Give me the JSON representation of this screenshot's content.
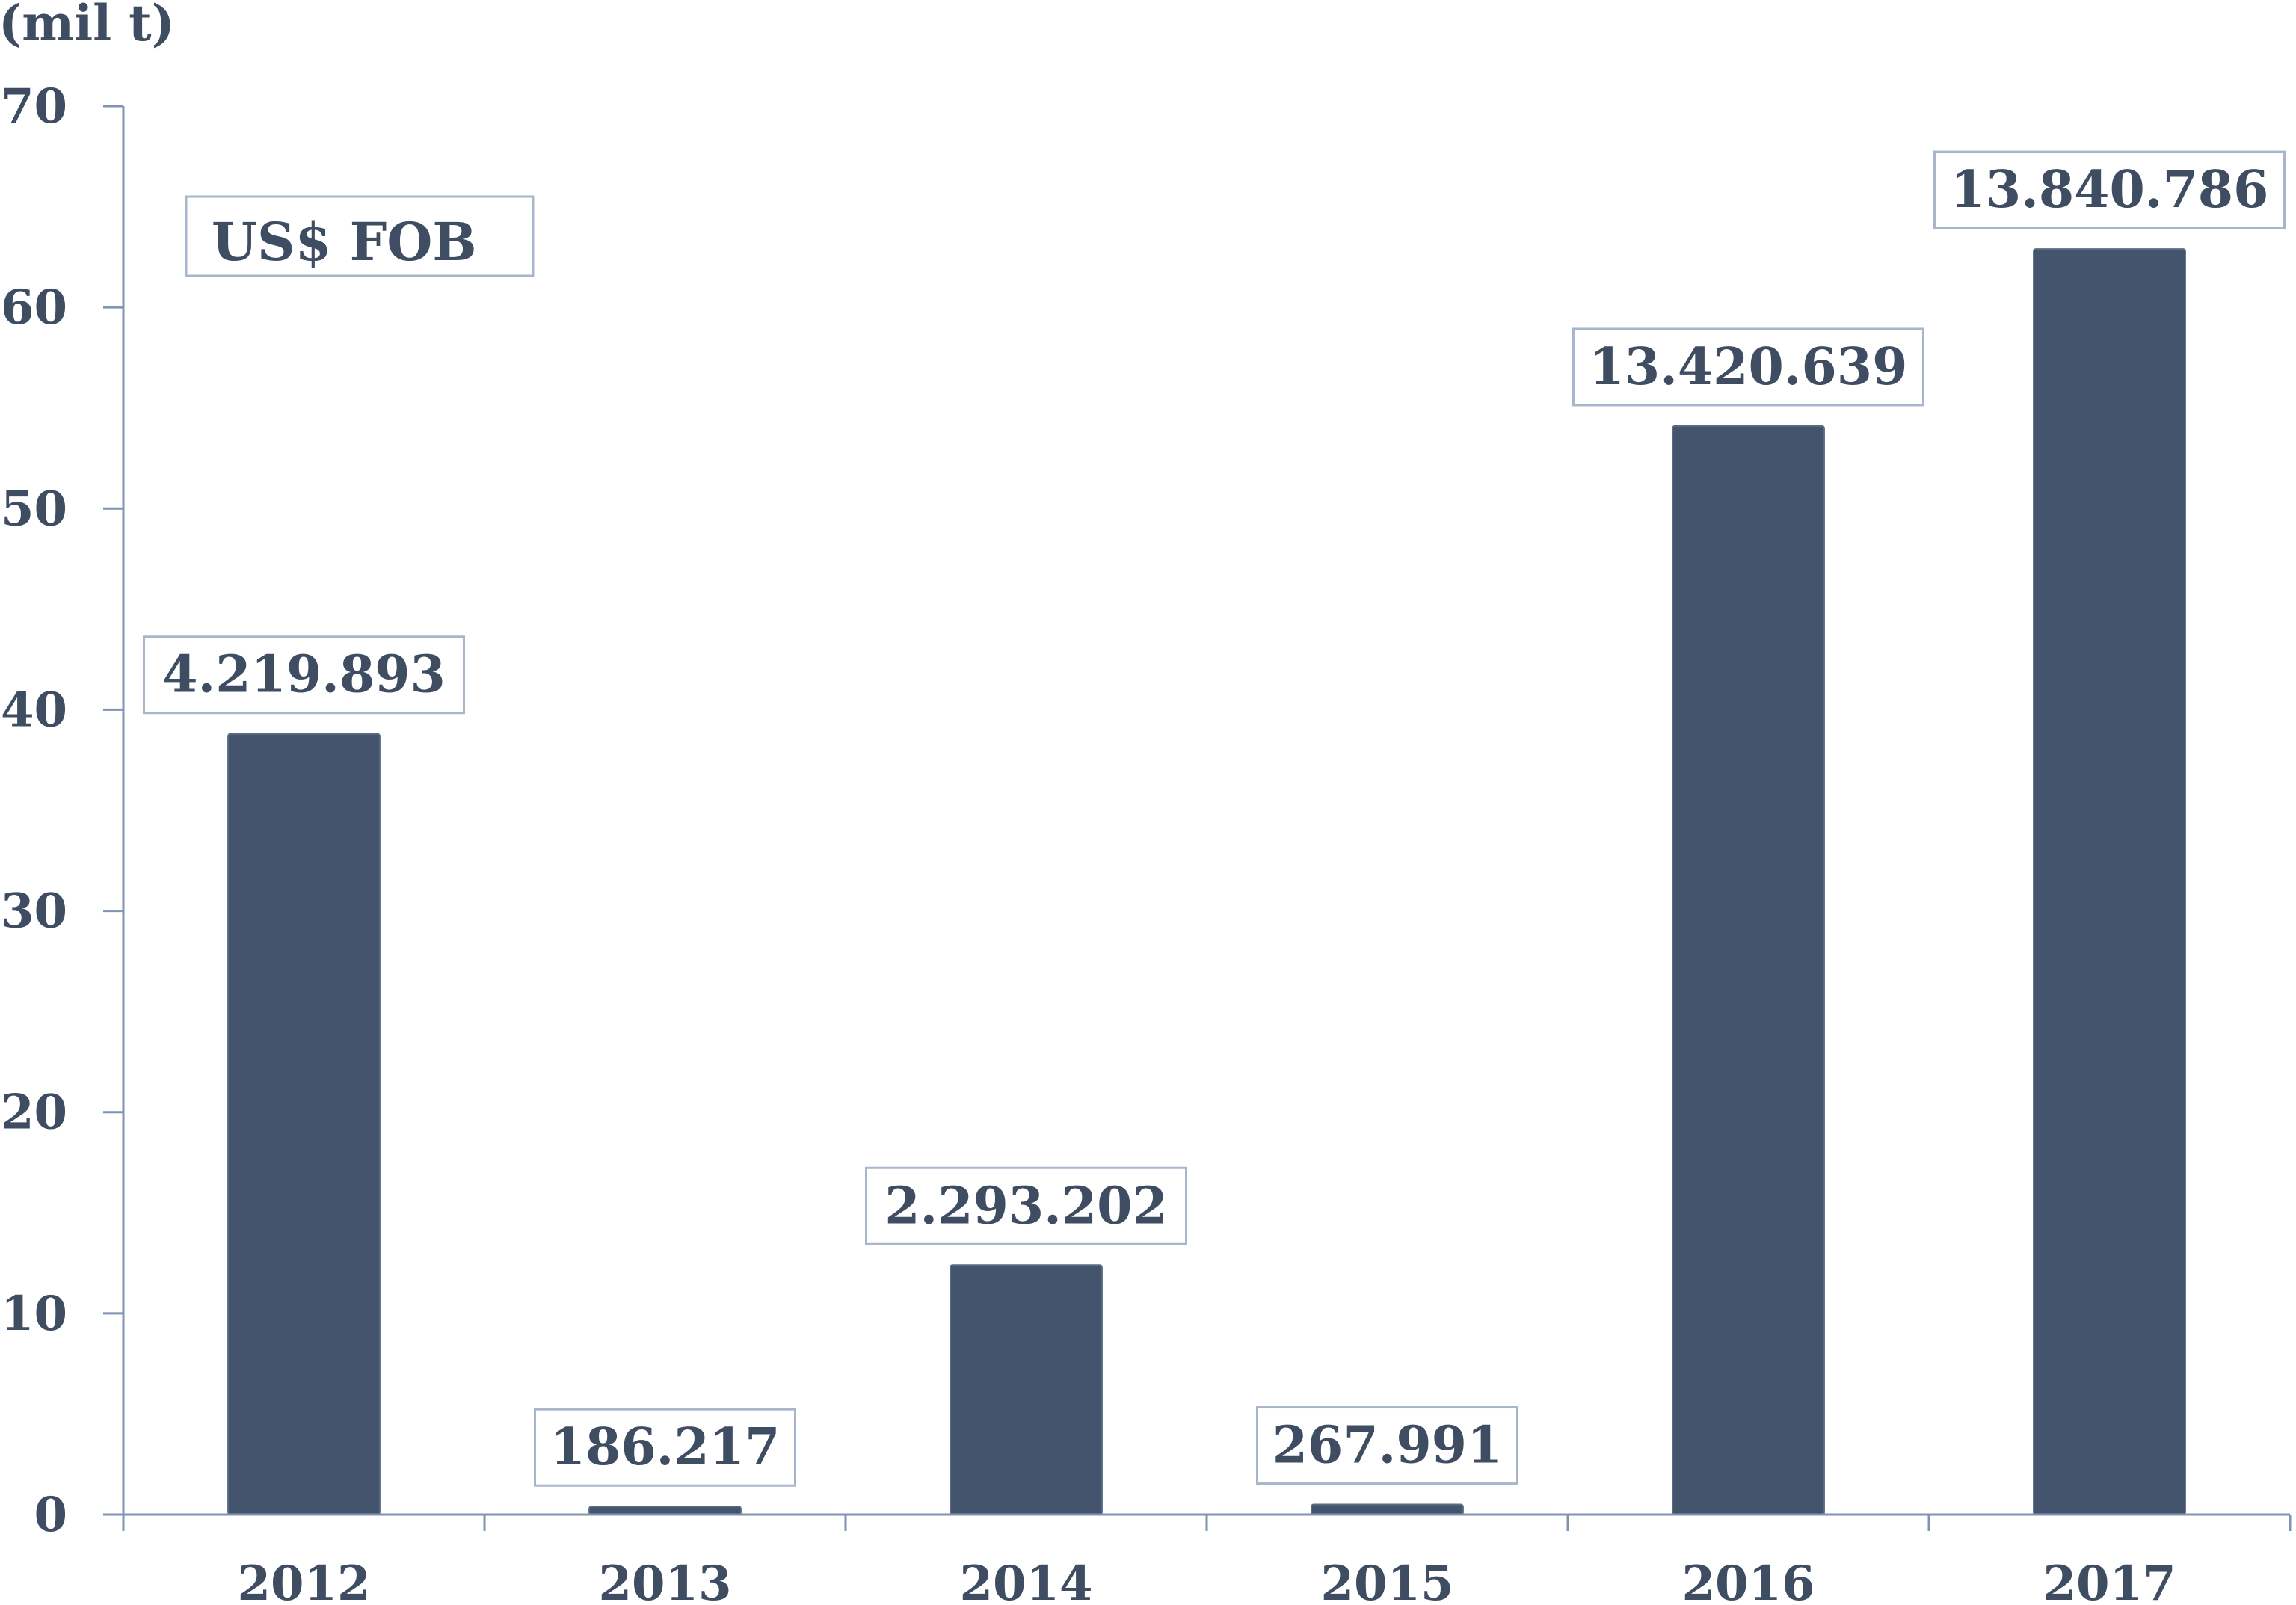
{
  "chart_data": {
    "type": "bar",
    "categories": [
      "2012",
      "2013",
      "2014",
      "2015",
      "2016",
      "2017"
    ],
    "values": [
      38.8,
      0.4,
      12.4,
      0.5,
      54.1,
      62.9
    ],
    "data_labels": [
      "4.219.893",
      "186.217",
      "2.293.202",
      "267.991",
      "13.420.639",
      "13.840.786"
    ],
    "ylabel": "(mil t)",
    "ylim": [
      0,
      70
    ],
    "yticks": [
      0,
      10,
      20,
      30,
      40,
      50,
      60,
      70
    ],
    "annotation": "US$ FOB",
    "grid": false,
    "legend": "none",
    "bar_color": "#43546c",
    "axis_color": "#7f93b2"
  }
}
